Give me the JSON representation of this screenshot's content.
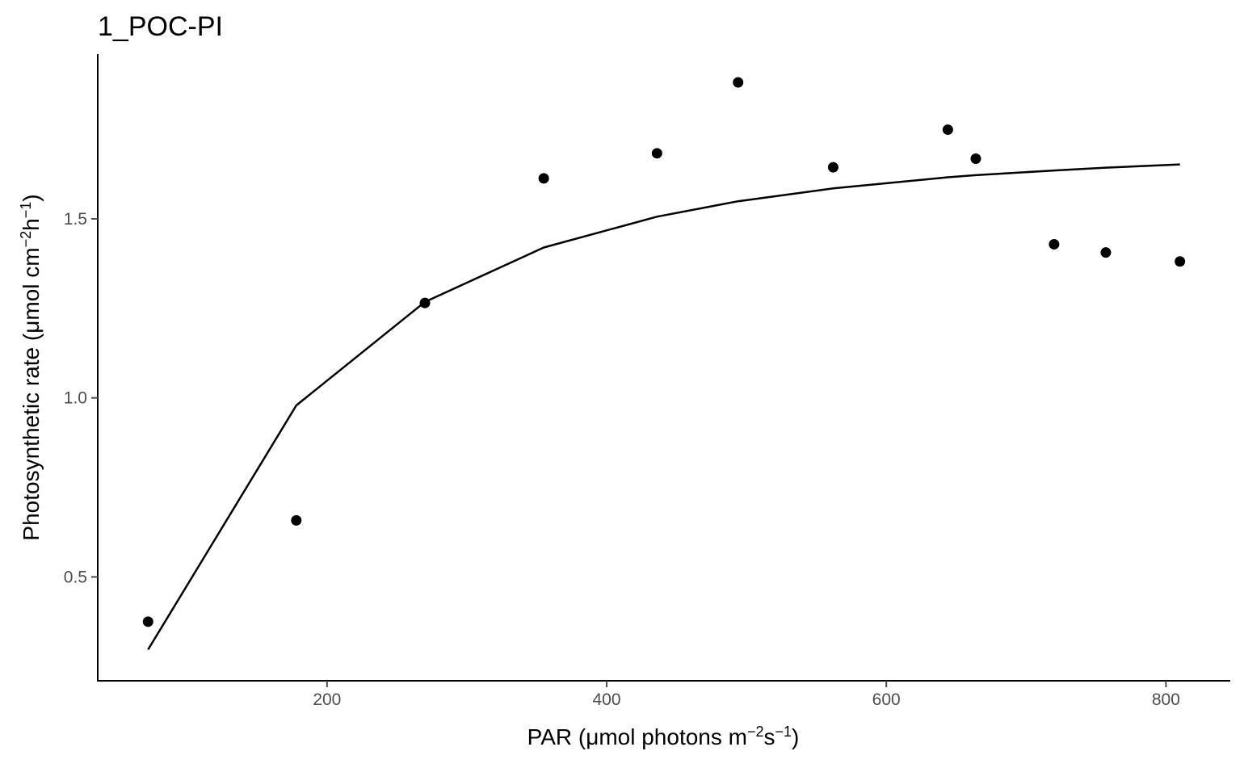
{
  "chart_data": {
    "type": "scatter",
    "title": "1_POC-PI",
    "xlabel": {
      "prefix": "PAR (μmol photons m",
      "sup1": "−2",
      "mid": "s",
      "sup2": "−1",
      "suffix": ")"
    },
    "ylabel": {
      "prefix": "Photosynthetic rate (μmol cm",
      "sup1": "−2",
      "mid": "h",
      "sup2": "−1",
      "suffix": ")"
    },
    "xlim": [
      36,
      846
    ],
    "ylim": [
      0.21,
      1.96
    ],
    "xticks": [
      200,
      400,
      600,
      800
    ],
    "xtick_labels": [
      "200",
      "400",
      "600",
      "800"
    ],
    "yticks": [
      0.5,
      1.0,
      1.5
    ],
    "ytick_labels": [
      "0.5",
      "1.0",
      "1.5"
    ],
    "grid": false,
    "legend": "none",
    "series": [
      {
        "type": "scatter",
        "x": [
          72,
          178,
          270,
          355,
          436,
          494,
          562,
          644,
          664,
          720,
          757,
          810
        ],
        "y": [
          0.375,
          0.658,
          1.265,
          1.613,
          1.683,
          1.881,
          1.644,
          1.749,
          1.668,
          1.429,
          1.406,
          1.381
        ]
      },
      {
        "type": "line",
        "x": [
          72,
          178,
          270,
          355,
          436,
          494,
          562,
          644,
          664,
          720,
          757,
          810
        ],
        "y": [
          0.297,
          0.979,
          1.268,
          1.42,
          1.506,
          1.549,
          1.585,
          1.616,
          1.622,
          1.635,
          1.643,
          1.652
        ]
      }
    ],
    "colors": {
      "points": "#000000",
      "line": "#000000",
      "axis": "#000000",
      "ticks": "#4d4d4d"
    }
  }
}
